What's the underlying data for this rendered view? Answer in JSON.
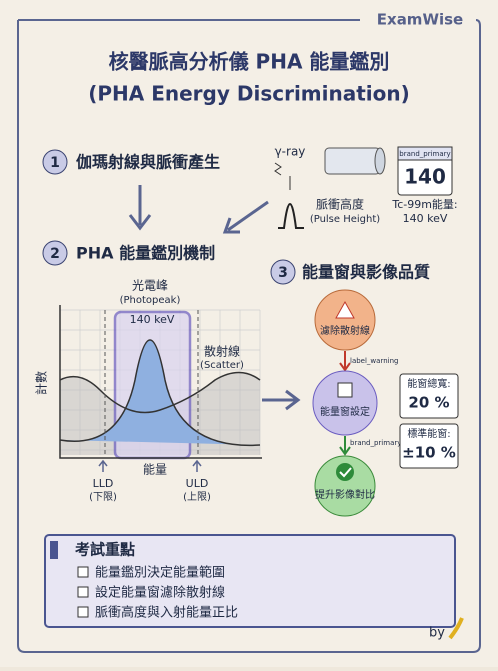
{
  "brand": "ExamWise",
  "header": {
    "title": "核醫脈高分析儀 PHA 能量鑑別",
    "subtitle": "(PHA Energy Discrimination)"
  },
  "section1": {
    "number": "1",
    "title": "伽瑪射線與脈衝產生",
    "ray": "γ-ray",
    "pulse_label": "脈衝高度",
    "pulse_label_en": "(Pulse Height)",
    "card": {
      "label": "brand_primary",
      "value": "140"
    },
    "caption": "Tc-99m能量:",
    "caption_value": "140 keV"
  },
  "section2": {
    "number": "2",
    "title": "PHA 能量鑑別機制",
    "photopeak": "光電峰",
    "photopeak_en": "(Photopeak)",
    "peak_energy": "140 keV",
    "scatter": "散射線",
    "scatter_en": "(Scatter)",
    "y_label": "計數",
    "x_label": "能量",
    "lld": "LLD",
    "lld_note": "(下限)",
    "uld": "ULD",
    "uld_note": "(上限)"
  },
  "section3": {
    "number": "3",
    "title": "能量窗與影像品質",
    "nodes": [
      "濾除散射線",
      "能量窗設定",
      "提升影像對比"
    ],
    "tags": [
      "label_warning",
      "brand_primary"
    ],
    "cards": [
      {
        "label": "能窗總寬:",
        "value": "20 %"
      },
      {
        "label": "標準能窗:",
        "value": "±10 %"
      }
    ]
  },
  "summary": {
    "title": "考試重點",
    "items": [
      "能量鑑別決定能量範圍",
      "設定能量窗濾除散射線",
      "脈衝高度與入射能量正比"
    ]
  },
  "signature": "by"
}
